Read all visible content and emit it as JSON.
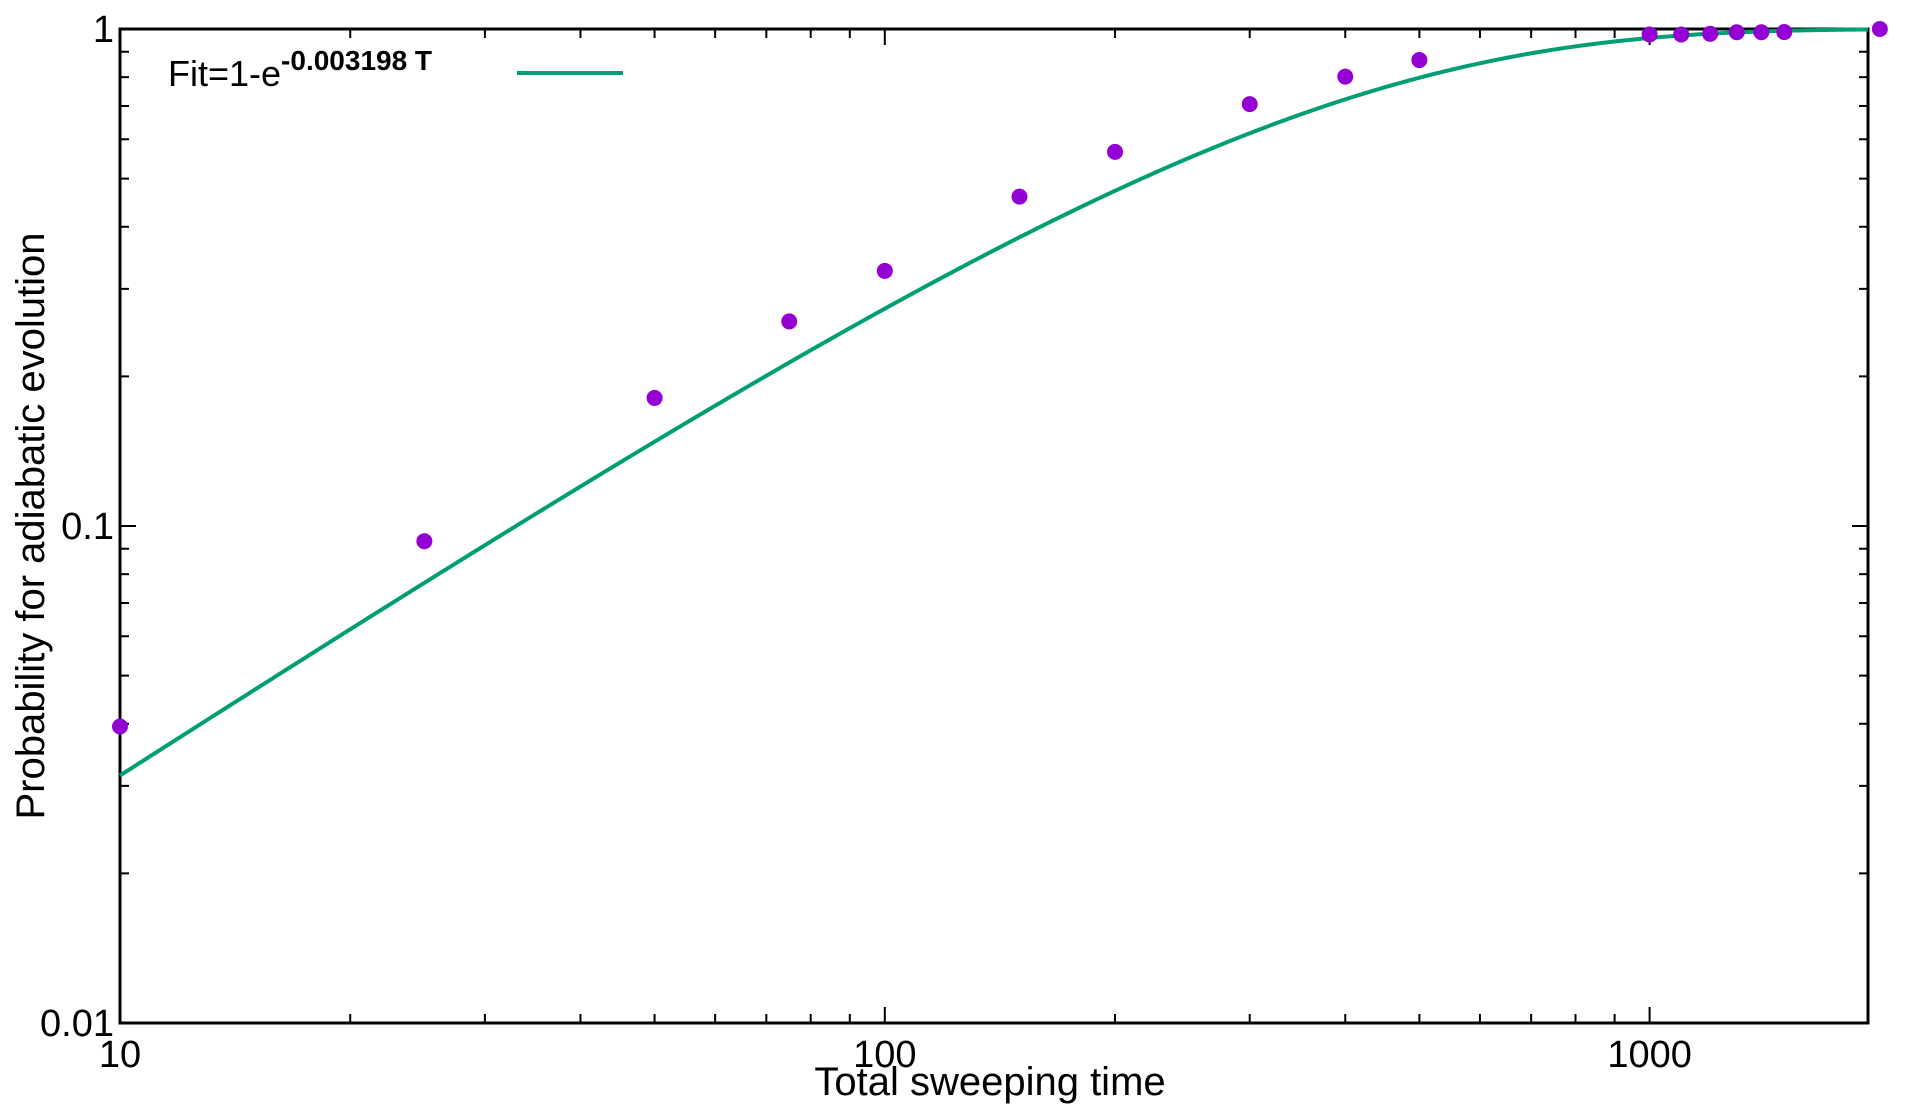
{
  "chart_data": {
    "type": "scatter",
    "title": "",
    "xlabel": "Total sweeping time",
    "ylabel": "Probability for  adiabatic evolution",
    "xscale": "log",
    "yscale": "log",
    "xlim": [
      10,
      1930
    ],
    "ylim": [
      0.01,
      1
    ],
    "x_ticks": [
      10,
      100,
      1000
    ],
    "x_tick_labels": [
      "10",
      "100",
      "1000"
    ],
    "y_ticks": [
      0.01,
      0.1,
      1
    ],
    "y_tick_labels": [
      "0.01",
      "0.1",
      "1"
    ],
    "grid": false,
    "legend_position": "top-left",
    "series": [
      {
        "kind": "points",
        "color": "#9400d3",
        "x": [
          10,
          25,
          50,
          75,
          100,
          150,
          200,
          300,
          400,
          500,
          1000,
          1100,
          1200,
          1300,
          1400,
          1500,
          2000
        ],
        "y": [
          0.0395,
          0.0932,
          0.181,
          0.258,
          0.326,
          0.46,
          0.566,
          0.706,
          0.802,
          0.866,
          0.975,
          0.975,
          0.978,
          0.985,
          0.985,
          0.986,
          1.0
        ]
      },
      {
        "kind": "line",
        "name_prefix": "Fit=1-e",
        "name_exponent": "-0.003198 T",
        "color": "#009e73",
        "function": "1-exp(-0.003198*T)",
        "rate": 0.003198
      }
    ]
  }
}
